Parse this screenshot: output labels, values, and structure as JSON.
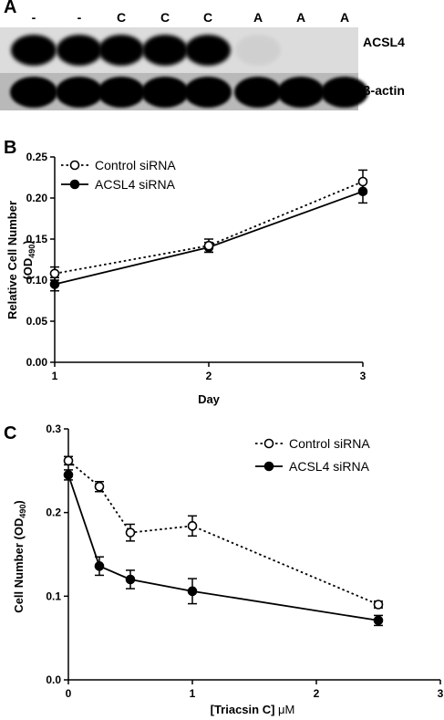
{
  "panel_a": {
    "letter": "A",
    "lane_labels": [
      "-",
      "-",
      "C",
      "C",
      "C",
      "A",
      "A",
      "A"
    ],
    "band_labels": [
      "ACSL4",
      "β-actin"
    ],
    "band_presence": {
      "ACSL4": [
        1,
        1,
        1,
        1,
        1,
        0.05,
        0,
        0
      ],
      "β-actin": [
        1,
        1,
        1,
        1,
        1,
        1,
        1,
        1
      ]
    }
  },
  "panel_b": {
    "letter": "B"
  },
  "panel_c": {
    "letter": "C"
  },
  "chart_data": [
    {
      "type": "line",
      "panel": "B",
      "xlabel": "Day",
      "ylabel": "Relative Cell Number",
      "ylabel_line2": "(OD",
      "ylabel_sub": "490",
      "ylabel_close": ")",
      "xlim": [
        1,
        3
      ],
      "ylim": [
        0,
        0.25
      ],
      "xticks": [
        1,
        2,
        3
      ],
      "xtick_labels": [
        "1",
        "2",
        "3"
      ],
      "yticks": [
        0,
        0.05,
        0.1,
        0.15,
        0.2,
        0.25
      ],
      "ytick_labels": [
        "0.00",
        "0.05",
        "0.10",
        "0.15",
        "0.20",
        "0.25"
      ],
      "legend_position": "top-left",
      "series": [
        {
          "name": "Control siRNA",
          "marker": "open-circle",
          "line": "dotted",
          "x": [
            1,
            2,
            3
          ],
          "y": [
            0.108,
            0.142,
            0.22
          ],
          "err": [
            0.008,
            0.008,
            0.014
          ]
        },
        {
          "name": "ACSL4 siRNA",
          "marker": "filled-circle",
          "line": "solid",
          "x": [
            1,
            2,
            3
          ],
          "y": [
            0.095,
            0.14,
            0.208
          ],
          "err": [
            0.008,
            0.006,
            0.014
          ]
        }
      ]
    },
    {
      "type": "line",
      "panel": "C",
      "xlabel_pre": "[Triacsin C] ",
      "xlabel_unit": "μM",
      "ylabel": "Cell Number (OD",
      "ylabel_sub": "490",
      "ylabel_close": ")",
      "xlim": [
        0,
        3
      ],
      "ylim": [
        0,
        0.3
      ],
      "xticks": [
        0,
        1,
        2,
        3
      ],
      "xtick_labels": [
        "0",
        "1",
        "2",
        "3"
      ],
      "yticks": [
        0,
        0.1,
        0.2,
        0.3
      ],
      "ytick_labels": [
        "0.0",
        "0.1",
        "0.2",
        "0.3"
      ],
      "legend_position": "top-right",
      "series": [
        {
          "name": "Control siRNA",
          "marker": "open-circle",
          "line": "dotted",
          "x": [
            0,
            0.25,
            0.5,
            1,
            2.5
          ],
          "y": [
            0.262,
            0.231,
            0.176,
            0.184,
            0.09
          ],
          "err": [
            0.005,
            0.006,
            0.01,
            0.012,
            0.004
          ]
        },
        {
          "name": "ACSL4 siRNA",
          "marker": "filled-circle",
          "line": "solid",
          "x": [
            0,
            0.25,
            0.5,
            1,
            2.5
          ],
          "y": [
            0.245,
            0.136,
            0.12,
            0.106,
            0.071
          ],
          "err": [
            0.006,
            0.011,
            0.011,
            0.015,
            0.006
          ]
        }
      ]
    }
  ]
}
